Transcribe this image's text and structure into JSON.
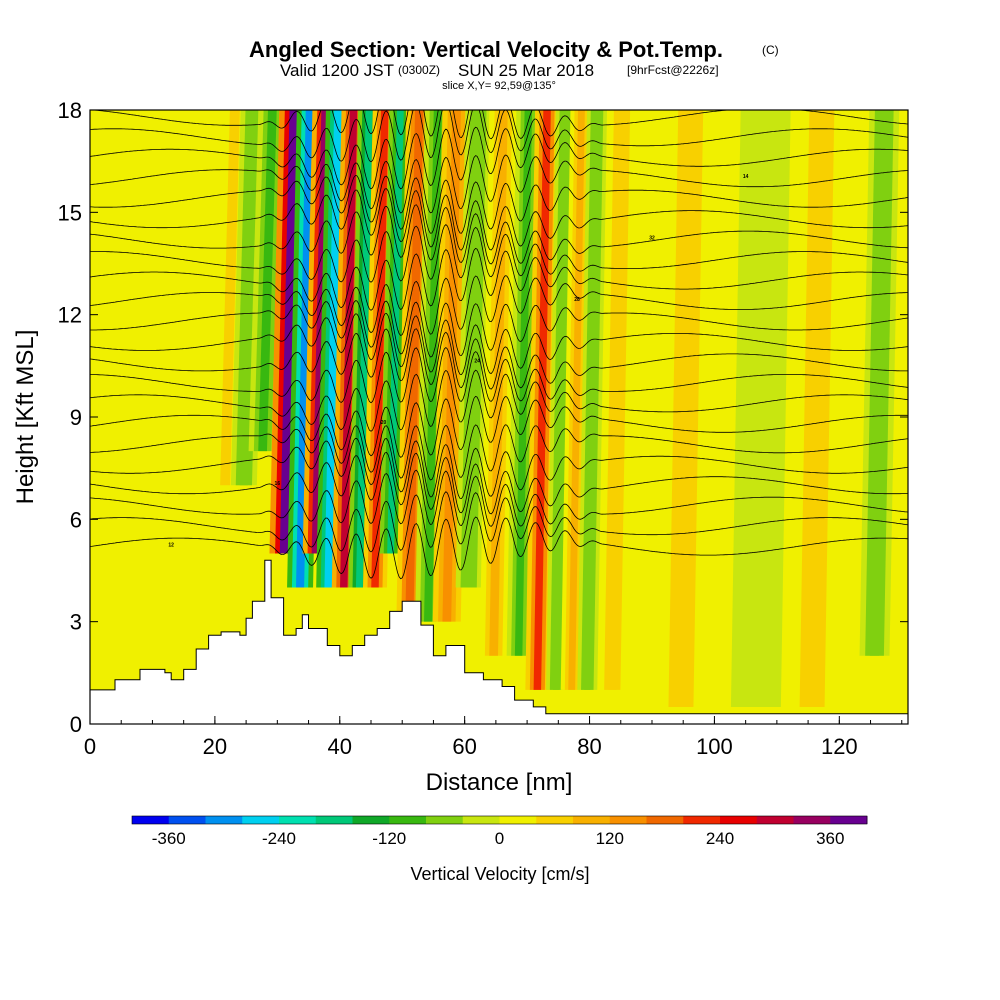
{
  "chart_data": {
    "type": "heatmap",
    "title": {
      "main": "Angled Section: Vertical Velocity & Pot.Temp.",
      "unit_tag": "(C)",
      "valid_prefix": "Valid 1200 JST",
      "zulu": "(0300Z)",
      "valid_date": "SUN 25 Mar 2018",
      "fcst": "[9hrFcst@2226z]",
      "slice": "slice X,Y= 92,59@135°"
    },
    "xlabel": "Distance [nm]",
    "ylabel": "Height [Kft MSL]",
    "xlim": [
      0,
      131
    ],
    "ylim": [
      0,
      18
    ],
    "x_ticks": [
      0,
      20,
      40,
      60,
      80,
      100,
      120
    ],
    "y_ticks": [
      0,
      3,
      6,
      9,
      12,
      15,
      18
    ],
    "colorbar": {
      "title": "Vertical Velocity [cm/s]",
      "min": -400,
      "max": 400,
      "tick_values": [
        -360,
        -240,
        -120,
        0,
        120,
        240,
        360
      ],
      "tick_labels": [
        "-360",
        "-240",
        "-120",
        "0",
        "120",
        "240",
        "360"
      ],
      "colors": [
        "#0000f0",
        "#0050f0",
        "#0090f0",
        "#00d0f0",
        "#00e0b0",
        "#00c878",
        "#10a828",
        "#38b810",
        "#80d010",
        "#c8e610",
        "#f0f000",
        "#f8d000",
        "#f8b000",
        "#f89000",
        "#f06800",
        "#f02800",
        "#e80000",
        "#c00030",
        "#980060",
        "#680090"
      ]
    },
    "background_velocity": 30,
    "updraft_downdraft_bands": [
      {
        "x": 22,
        "w": 40,
        "half_width": 1.6,
        "y_min": 7,
        "y_max": 18
      },
      {
        "x": 25,
        "w": -70,
        "half_width": 1.3,
        "y_min": 7,
        "y_max": 18
      },
      {
        "x": 28,
        "w": -90,
        "half_width": 1.4,
        "y_min": 8,
        "y_max": 18
      },
      {
        "x": 31.5,
        "w": 360,
        "half_width": 1.5,
        "y_min": 5,
        "y_max": 18
      },
      {
        "x": 34,
        "w": -300,
        "half_width": 1.3,
        "y_min": 4,
        "y_max": 18
      },
      {
        "x": 36.5,
        "w": 330,
        "half_width": 1.3,
        "y_min": 5,
        "y_max": 18
      },
      {
        "x": 38.5,
        "w": -260,
        "half_width": 1.2,
        "y_min": 4,
        "y_max": 18
      },
      {
        "x": 41,
        "w": 280,
        "half_width": 1.2,
        "y_min": 4,
        "y_max": 18
      },
      {
        "x": 43.5,
        "w": -200,
        "half_width": 1.1,
        "y_min": 4,
        "y_max": 18
      },
      {
        "x": 46,
        "w": 210,
        "half_width": 1.2,
        "y_min": 4,
        "y_max": 18
      },
      {
        "x": 48.5,
        "w": -170,
        "half_width": 1.1,
        "y_min": 5,
        "y_max": 18
      },
      {
        "x": 51.5,
        "w": 180,
        "half_width": 1.3,
        "y_min": 3,
        "y_max": 18
      },
      {
        "x": 54.5,
        "w": -110,
        "half_width": 1.3,
        "y_min": 3,
        "y_max": 18
      },
      {
        "x": 57.5,
        "w": 120,
        "half_width": 1.4,
        "y_min": 3,
        "y_max": 18
      },
      {
        "x": 61,
        "w": -70,
        "half_width": 1.3,
        "y_min": 4,
        "y_max": 18
      },
      {
        "x": 65,
        "w": 110,
        "half_width": 1.4,
        "y_min": 2,
        "y_max": 18
      },
      {
        "x": 69,
        "w": -90,
        "half_width": 1.2,
        "y_min": 2,
        "y_max": 18
      },
      {
        "x": 72,
        "w": 200,
        "half_width": 1.2,
        "y_min": 1,
        "y_max": 18
      },
      {
        "x": 75,
        "w": -80,
        "half_width": 1.0,
        "y_min": 1,
        "y_max": 18
      },
      {
        "x": 77.5,
        "w": 110,
        "half_width": 1.1,
        "y_min": 1,
        "y_max": 18
      },
      {
        "x": 80,
        "w": -70,
        "half_width": 1.0,
        "y_min": 1,
        "y_max": 18
      },
      {
        "x": 84,
        "w": 60,
        "half_width": 1.3,
        "y_min": 1,
        "y_max": 18
      },
      {
        "x": 95,
        "w": 70,
        "half_width": 2.0,
        "y_min": 0.5,
        "y_max": 18
      },
      {
        "x": 107,
        "w": -30,
        "half_width": 2.5,
        "y_min": 0.5,
        "y_max": 18
      },
      {
        "x": 116,
        "w": 70,
        "half_width": 2.0,
        "y_min": 0.5,
        "y_max": 18
      },
      {
        "x": 126,
        "w": -60,
        "half_width": 1.5,
        "y_min": 2,
        "y_max": 18
      }
    ],
    "terrain": {
      "x": [
        0,
        4,
        4,
        8,
        8,
        12,
        12,
        13,
        13,
        15,
        15,
        17,
        17,
        19,
        19,
        21,
        21,
        24,
        24,
        25,
        25,
        26,
        26,
        28,
        28,
        29,
        29,
        31,
        31,
        33,
        33,
        34,
        34,
        35,
        35,
        38,
        38,
        40,
        40,
        42,
        42,
        44,
        44,
        46,
        46,
        48,
        48,
        50,
        50,
        53,
        53,
        55,
        55,
        57,
        57,
        60,
        60,
        63,
        63,
        66,
        66,
        68,
        68,
        71,
        71,
        73,
        73,
        131
      ],
      "height": [
        1.0,
        1.0,
        1.3,
        1.3,
        1.6,
        1.6,
        1.5,
        1.5,
        1.3,
        1.3,
        1.6,
        1.6,
        2.2,
        2.2,
        2.6,
        2.6,
        2.7,
        2.7,
        2.6,
        2.6,
        3.1,
        3.1,
        3.6,
        3.6,
        4.8,
        4.8,
        3.7,
        3.7,
        2.6,
        2.6,
        2.8,
        2.8,
        3.2,
        3.2,
        2.8,
        2.8,
        2.3,
        2.3,
        2.0,
        2.0,
        2.3,
        2.3,
        2.6,
        2.6,
        2.8,
        2.8,
        3.3,
        3.3,
        3.6,
        3.6,
        2.9,
        2.9,
        2.0,
        2.0,
        2.3,
        2.3,
        1.5,
        1.5,
        1.3,
        1.3,
        1.1,
        1.1,
        0.7,
        0.7,
        0.5,
        0.5,
        0.3,
        0.3
      ]
    },
    "isentropes": {
      "levels": [
        5.2,
        5.8,
        6.4,
        7.0,
        7.6,
        8.2,
        8.8,
        9.4,
        10.0,
        10.6,
        11.2,
        11.8,
        12.4,
        13.0,
        13.6,
        14.2,
        14.8,
        15.4,
        16.0,
        16.6,
        17.2,
        17.8
      ],
      "wave_start": 27,
      "wave_end": 82,
      "wavelength": 4.8,
      "amplitude": 0.8
    },
    "contour_labels": [
      "12",
      "14",
      "16",
      "18",
      "20",
      "22",
      "24",
      "26",
      "28",
      "30",
      "32"
    ]
  }
}
